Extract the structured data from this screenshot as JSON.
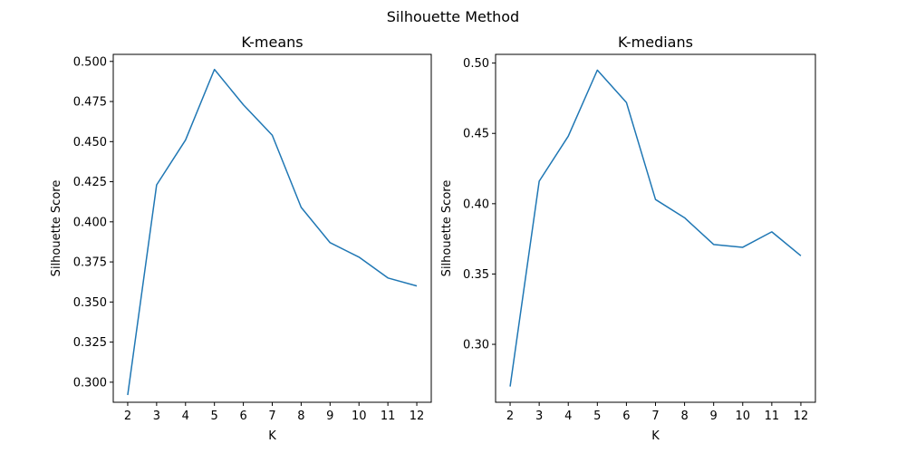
{
  "figure": {
    "title": "Silhouette Method"
  },
  "chart_data": [
    {
      "type": "line",
      "title": "K-means",
      "xlabel": "K",
      "ylabel": "Silhouette Score",
      "x": [
        2,
        3,
        4,
        5,
        6,
        7,
        8,
        9,
        10,
        11,
        12
      ],
      "series": [
        {
          "values": [
            0.292,
            0.423,
            0.451,
            0.495,
            0.473,
            0.454,
            0.409,
            0.387,
            0.378,
            0.365,
            0.36
          ],
          "color": "#1f77b4"
        }
      ],
      "xlim": [
        1.5,
        12.5
      ],
      "ylim": [
        0.2875,
        0.5044
      ],
      "xticks": [
        2,
        3,
        4,
        5,
        6,
        7,
        8,
        9,
        10,
        11,
        12
      ],
      "yticks": [
        0.3,
        0.325,
        0.35,
        0.375,
        0.4,
        0.425,
        0.45,
        0.475,
        0.5
      ],
      "ytick_labels": [
        "0.300",
        "0.325",
        "0.350",
        "0.375",
        "0.400",
        "0.425",
        "0.450",
        "0.475",
        "0.500"
      ],
      "grid": false
    },
    {
      "type": "line",
      "title": "K-medians",
      "xlabel": "K",
      "ylabel": "Silhouette Score",
      "x": [
        2,
        3,
        4,
        5,
        6,
        7,
        8,
        9,
        10,
        11,
        12
      ],
      "series": [
        {
          "values": [
            0.27,
            0.416,
            0.448,
            0.495,
            0.472,
            0.403,
            0.39,
            0.371,
            0.369,
            0.38,
            0.363
          ],
          "color": "#1f77b4"
        }
      ],
      "xlim": [
        1.5,
        12.5
      ],
      "ylim": [
        0.2588,
        0.5062
      ],
      "xticks": [
        2,
        3,
        4,
        5,
        6,
        7,
        8,
        9,
        10,
        11,
        12
      ],
      "yticks": [
        0.3,
        0.35,
        0.4,
        0.45,
        0.5
      ],
      "ytick_labels": [
        "0.30",
        "0.35",
        "0.40",
        "0.45",
        "0.50"
      ],
      "grid": false
    }
  ]
}
